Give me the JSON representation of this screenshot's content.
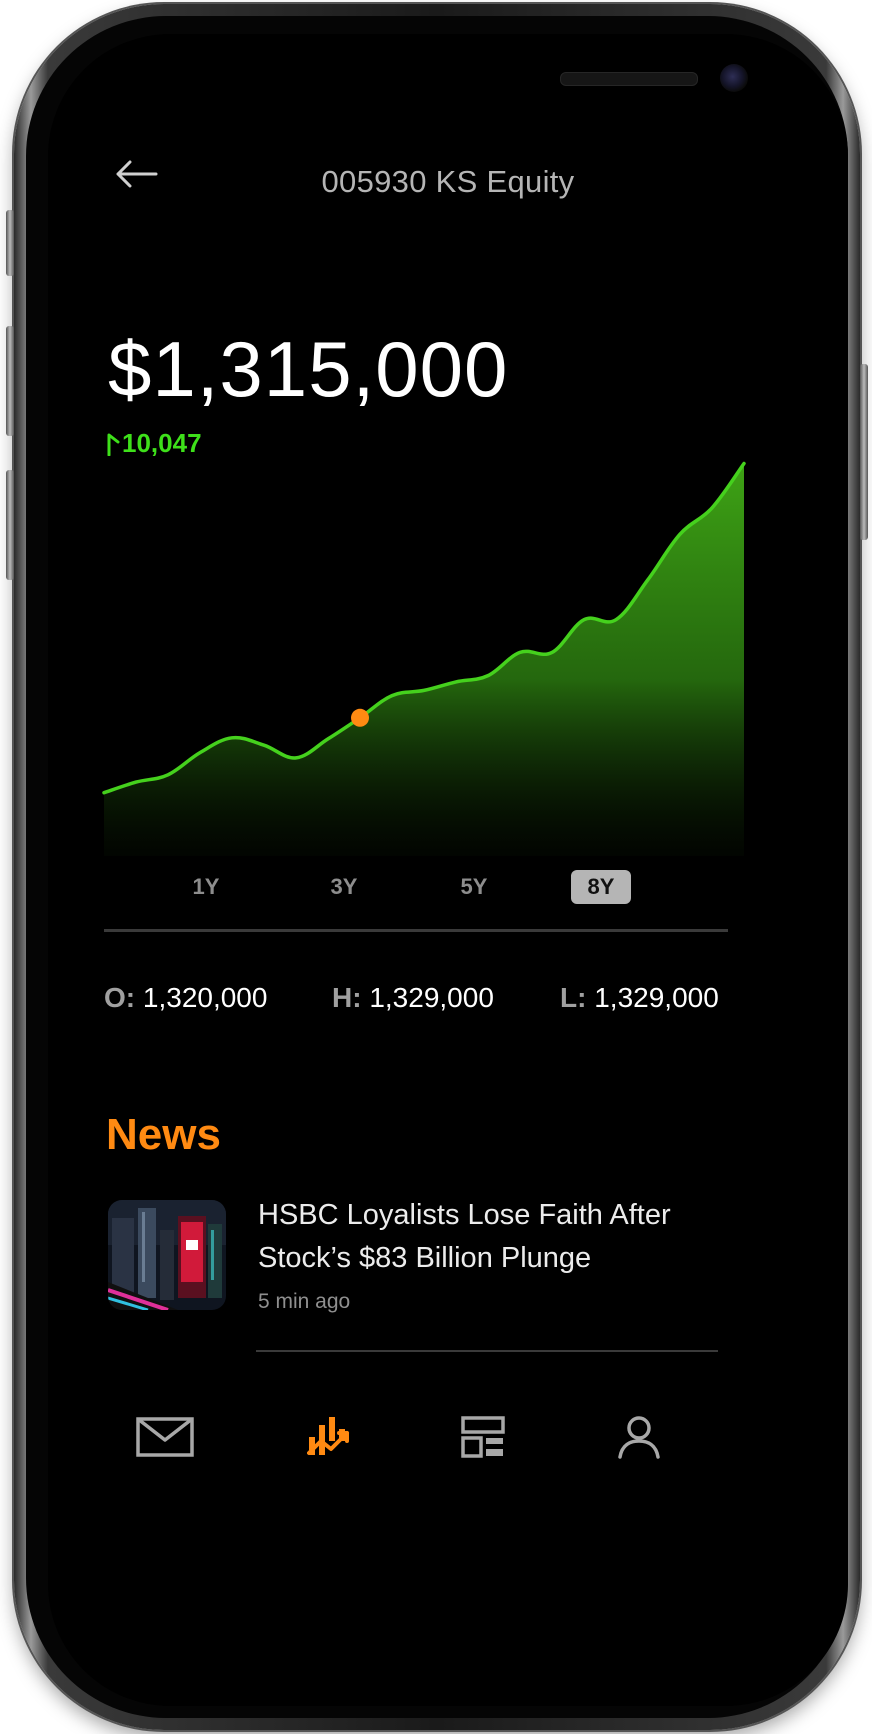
{
  "header": {
    "title": "005930 KS Equity"
  },
  "quote": {
    "price": "$1,315,000",
    "change": "10,047"
  },
  "chart_data": {
    "type": "area",
    "x": [
      0,
      1,
      2,
      3,
      4,
      5,
      6,
      7,
      8,
      9,
      10,
      11,
      12,
      13,
      14,
      15,
      16,
      17,
      18,
      19,
      20
    ],
    "values": [
      60,
      70,
      77,
      98,
      112,
      105,
      93,
      111,
      131,
      152,
      157,
      165,
      171,
      193,
      193,
      224,
      224,
      262,
      305,
      330,
      372
    ],
    "highlight_index": 8,
    "ylim": [
      0,
      400
    ]
  },
  "ranges": [
    {
      "label": "1Y",
      "active": false
    },
    {
      "label": "3Y",
      "active": false
    },
    {
      "label": "5Y",
      "active": false
    },
    {
      "label": "8Y",
      "active": true
    }
  ],
  "stats": {
    "open_label": "O:",
    "open_value": "1,320,000",
    "high_label": "H:",
    "high_value": "1,329,000",
    "low_label": "L:",
    "low_value": "1,329,000"
  },
  "news": {
    "section_title": "News",
    "items": [
      {
        "headline": "HSBC Loyalists Lose Faith After Stock’s $83 Billion Plunge",
        "time": "5 min ago"
      }
    ]
  },
  "nav": {
    "items": [
      {
        "icon": "mail-icon",
        "active": false
      },
      {
        "icon": "chart-icon",
        "active": true
      },
      {
        "icon": "dashboard-icon",
        "active": false
      },
      {
        "icon": "profile-icon",
        "active": false
      }
    ]
  },
  "colors": {
    "accent": "#ff8a12",
    "positive": "#3ee01a",
    "background": "#000000"
  }
}
